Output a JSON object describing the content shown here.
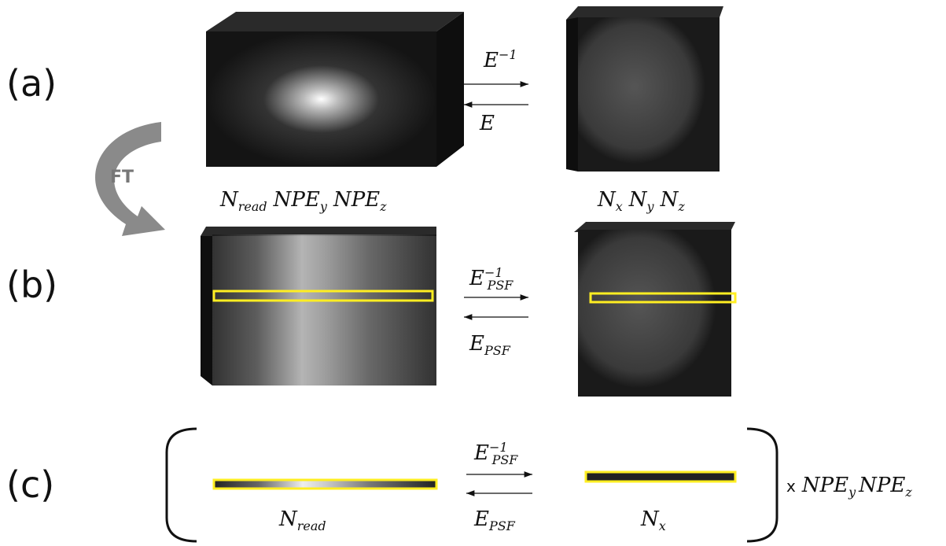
{
  "panels": [
    {
      "label": "(a)"
    },
    {
      "label": "(b)"
    },
    {
      "label": "(c)"
    }
  ],
  "ft_label": "FT",
  "rows": [
    {
      "forward": {
        "base": "E",
        "sup": "−1"
      },
      "backward": {
        "base": "E"
      },
      "left_dims": [
        {
          "base": "N",
          "sub": "read"
        },
        {
          "base": "NPE",
          "sub": "y"
        },
        {
          "base": "NPE",
          "sub": "z"
        }
      ],
      "right_dims": [
        {
          "base": "N",
          "sub": "x"
        },
        {
          "base": "N",
          "sub": "y"
        },
        {
          "base": "N",
          "sub": "z"
        }
      ]
    },
    {
      "forward": {
        "base": "E",
        "sub": "PSF",
        "sup": "−1"
      },
      "backward": {
        "base": "E",
        "sub": "PSF"
      }
    },
    {
      "forward": {
        "base": "E",
        "sub": "PSF",
        "sup": "−1"
      },
      "backward": {
        "base": "E",
        "sub": "PSF"
      },
      "left_dims": [
        {
          "base": "N",
          "sub": "read"
        }
      ],
      "right_dims": [
        {
          "base": "N",
          "sub": "x"
        }
      ]
    }
  ],
  "repeat": {
    "symbol": "x",
    "dims": [
      {
        "base": "NPE",
        "sub": "y"
      },
      {
        "base": "NPE",
        "sub": "z"
      }
    ]
  }
}
